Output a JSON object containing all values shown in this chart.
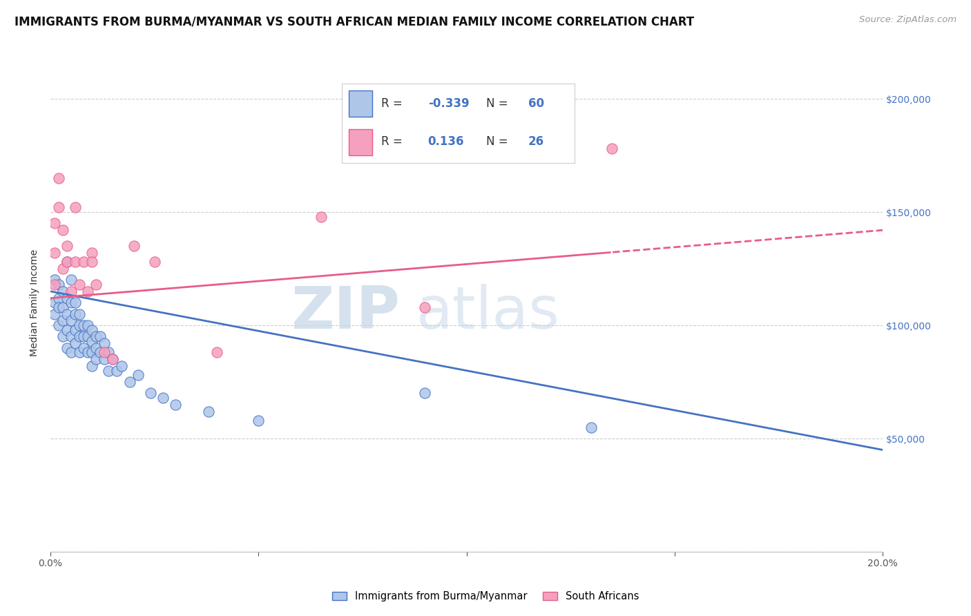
{
  "title": "IMMIGRANTS FROM BURMA/MYANMAR VS SOUTH AFRICAN MEDIAN FAMILY INCOME CORRELATION CHART",
  "source": "Source: ZipAtlas.com",
  "ylabel": "Median Family Income",
  "watermark_zip": "ZIP",
  "watermark_atlas": "atlas",
  "blue_R": "-0.339",
  "blue_N": "60",
  "pink_R": "0.136",
  "pink_N": "26",
  "legend_label_blue": "Immigrants from Burma/Myanmar",
  "legend_label_pink": "South Africans",
  "xlim": [
    0.0,
    0.2
  ],
  "ylim": [
    0,
    220000
  ],
  "yticks": [
    0,
    50000,
    100000,
    150000,
    200000
  ],
  "ytick_labels": [
    "",
    "$50,000",
    "$100,000",
    "$150,000",
    "$200,000"
  ],
  "blue_scatter_x": [
    0.001,
    0.001,
    0.001,
    0.002,
    0.002,
    0.002,
    0.002,
    0.003,
    0.003,
    0.003,
    0.003,
    0.004,
    0.004,
    0.004,
    0.004,
    0.004,
    0.005,
    0.005,
    0.005,
    0.005,
    0.005,
    0.006,
    0.006,
    0.006,
    0.006,
    0.007,
    0.007,
    0.007,
    0.007,
    0.008,
    0.008,
    0.008,
    0.009,
    0.009,
    0.009,
    0.01,
    0.01,
    0.01,
    0.01,
    0.011,
    0.011,
    0.011,
    0.012,
    0.012,
    0.013,
    0.013,
    0.014,
    0.014,
    0.015,
    0.016,
    0.017,
    0.019,
    0.021,
    0.024,
    0.027,
    0.03,
    0.038,
    0.05,
    0.09,
    0.13
  ],
  "blue_scatter_y": [
    120000,
    110000,
    105000,
    118000,
    112000,
    108000,
    100000,
    115000,
    108000,
    102000,
    95000,
    128000,
    112000,
    105000,
    98000,
    90000,
    120000,
    110000,
    102000,
    95000,
    88000,
    110000,
    105000,
    98000,
    92000,
    105000,
    100000,
    95000,
    88000,
    100000,
    95000,
    90000,
    100000,
    95000,
    88000,
    98000,
    93000,
    88000,
    82000,
    95000,
    90000,
    85000,
    95000,
    88000,
    92000,
    85000,
    88000,
    80000,
    85000,
    80000,
    82000,
    75000,
    78000,
    70000,
    68000,
    65000,
    62000,
    58000,
    70000,
    55000
  ],
  "pink_scatter_x": [
    0.001,
    0.001,
    0.001,
    0.002,
    0.002,
    0.003,
    0.003,
    0.004,
    0.004,
    0.005,
    0.006,
    0.006,
    0.007,
    0.008,
    0.009,
    0.01,
    0.01,
    0.011,
    0.013,
    0.015,
    0.02,
    0.025,
    0.04,
    0.065,
    0.09,
    0.135
  ],
  "pink_scatter_y": [
    145000,
    132000,
    118000,
    165000,
    152000,
    142000,
    125000,
    135000,
    128000,
    115000,
    152000,
    128000,
    118000,
    128000,
    115000,
    132000,
    128000,
    118000,
    88000,
    85000,
    135000,
    128000,
    88000,
    148000,
    108000,
    178000
  ],
  "blue_line_color": "#4472C4",
  "pink_line_color": "#E85C8A",
  "blue_scatter_color": "#AEC6E8",
  "pink_scatter_color": "#F5A0BE",
  "background_color": "#FFFFFF",
  "grid_color": "#CCCCCC",
  "title_fontsize": 12,
  "axis_label_fontsize": 10,
  "tick_fontsize": 10,
  "legend_fontsize": 12,
  "blue_line_intercept": 115000,
  "blue_line_slope": -350000,
  "pink_line_intercept": 112000,
  "pink_line_slope": 150000
}
